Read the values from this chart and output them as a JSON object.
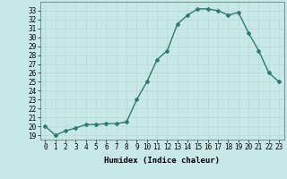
{
  "x": [
    0,
    1,
    2,
    3,
    4,
    5,
    6,
    7,
    8,
    9,
    10,
    11,
    12,
    13,
    14,
    15,
    16,
    17,
    18,
    19,
    20,
    21,
    22,
    23
  ],
  "y": [
    20,
    19,
    19.5,
    19.8,
    20.2,
    20.2,
    20.3,
    20.3,
    20.5,
    23,
    25,
    27.5,
    28.5,
    31.5,
    32.5,
    33.2,
    33.2,
    33,
    32.5,
    32.8,
    30.5,
    28.5,
    26,
    25
  ],
  "line_color": "#2d7a6e",
  "marker": "D",
  "marker_size": 2,
  "bg_color": "#c8e8e8",
  "grid_color": "#b8d8d8",
  "xlabel": "Humidex (Indice chaleur)",
  "ylim": [
    18.5,
    34.0
  ],
  "xlim": [
    -0.5,
    23.5
  ],
  "yticks": [
    19,
    20,
    21,
    22,
    23,
    24,
    25,
    26,
    27,
    28,
    29,
    30,
    31,
    32,
    33
  ],
  "xticks": [
    0,
    1,
    2,
    3,
    4,
    5,
    6,
    7,
    8,
    9,
    10,
    11,
    12,
    13,
    14,
    15,
    16,
    17,
    18,
    19,
    20,
    21,
    22,
    23
  ],
  "xlabel_fontsize": 6.5,
  "tick_fontsize": 5.5,
  "line_width": 1.0
}
